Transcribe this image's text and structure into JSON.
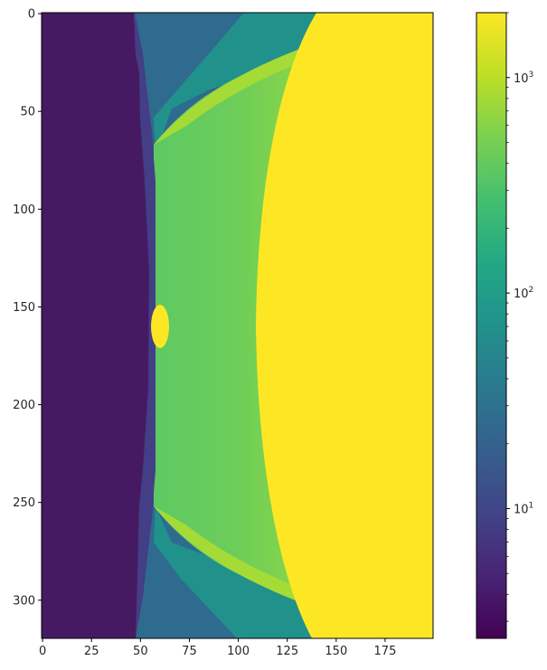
{
  "chart_data": {
    "type": "heatmap",
    "title": "",
    "xlabel": "",
    "ylabel": "",
    "xlim": [
      0,
      199
    ],
    "ylim": [
      319,
      0
    ],
    "x_ticks": [
      0,
      25,
      50,
      75,
      100,
      125,
      150,
      175
    ],
    "y_ticks": [
      0,
      50,
      100,
      150,
      200,
      250,
      300
    ],
    "colormap": "viridis",
    "color_scale": "log",
    "color_range": [
      2.5,
      2000
    ],
    "colorbar": {
      "tick_labels": [
        {
          "base": "10",
          "exponent": "1",
          "value": 10
        },
        {
          "base": "10",
          "exponent": "2",
          "value": 100
        },
        {
          "base": "10",
          "exponent": "3",
          "value": 1000
        }
      ]
    },
    "regions": [
      {
        "label": "left dark band",
        "x_range": [
          0,
          55
        ],
        "y_range": [
          0,
          319
        ],
        "approx_value": 3
      },
      {
        "label": "transition band",
        "x_range": [
          45,
          60
        ],
        "y_range": [
          0,
          319
        ],
        "approx_value": 8
      },
      {
        "label": "central green field",
        "x_range": [
          57,
          130
        ],
        "y_range": [
          60,
          260
        ],
        "approx_value": 400
      },
      {
        "label": "right saturated field",
        "x_range": [
          115,
          199
        ],
        "y_range": [
          0,
          319
        ],
        "approx_value": 2000
      },
      {
        "label": "bright spot",
        "center": [
          60,
          159
        ],
        "approx_value": 2000
      }
    ]
  }
}
